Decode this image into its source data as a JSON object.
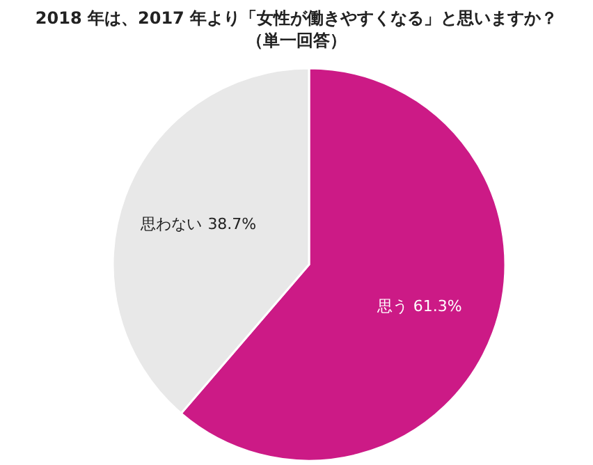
{
  "chart_data": {
    "type": "pie",
    "title": "2018 年は、2017 年より「女性が働きやすくなる」と思いますか？",
    "subtitle": "（単一回答）",
    "categories": [
      "思う",
      "思わない"
    ],
    "values": [
      61.3,
      38.7
    ],
    "value_labels": [
      "61.3%",
      "38.7%"
    ],
    "colors": [
      "#cc1a86",
      "#e8e8e8"
    ]
  }
}
